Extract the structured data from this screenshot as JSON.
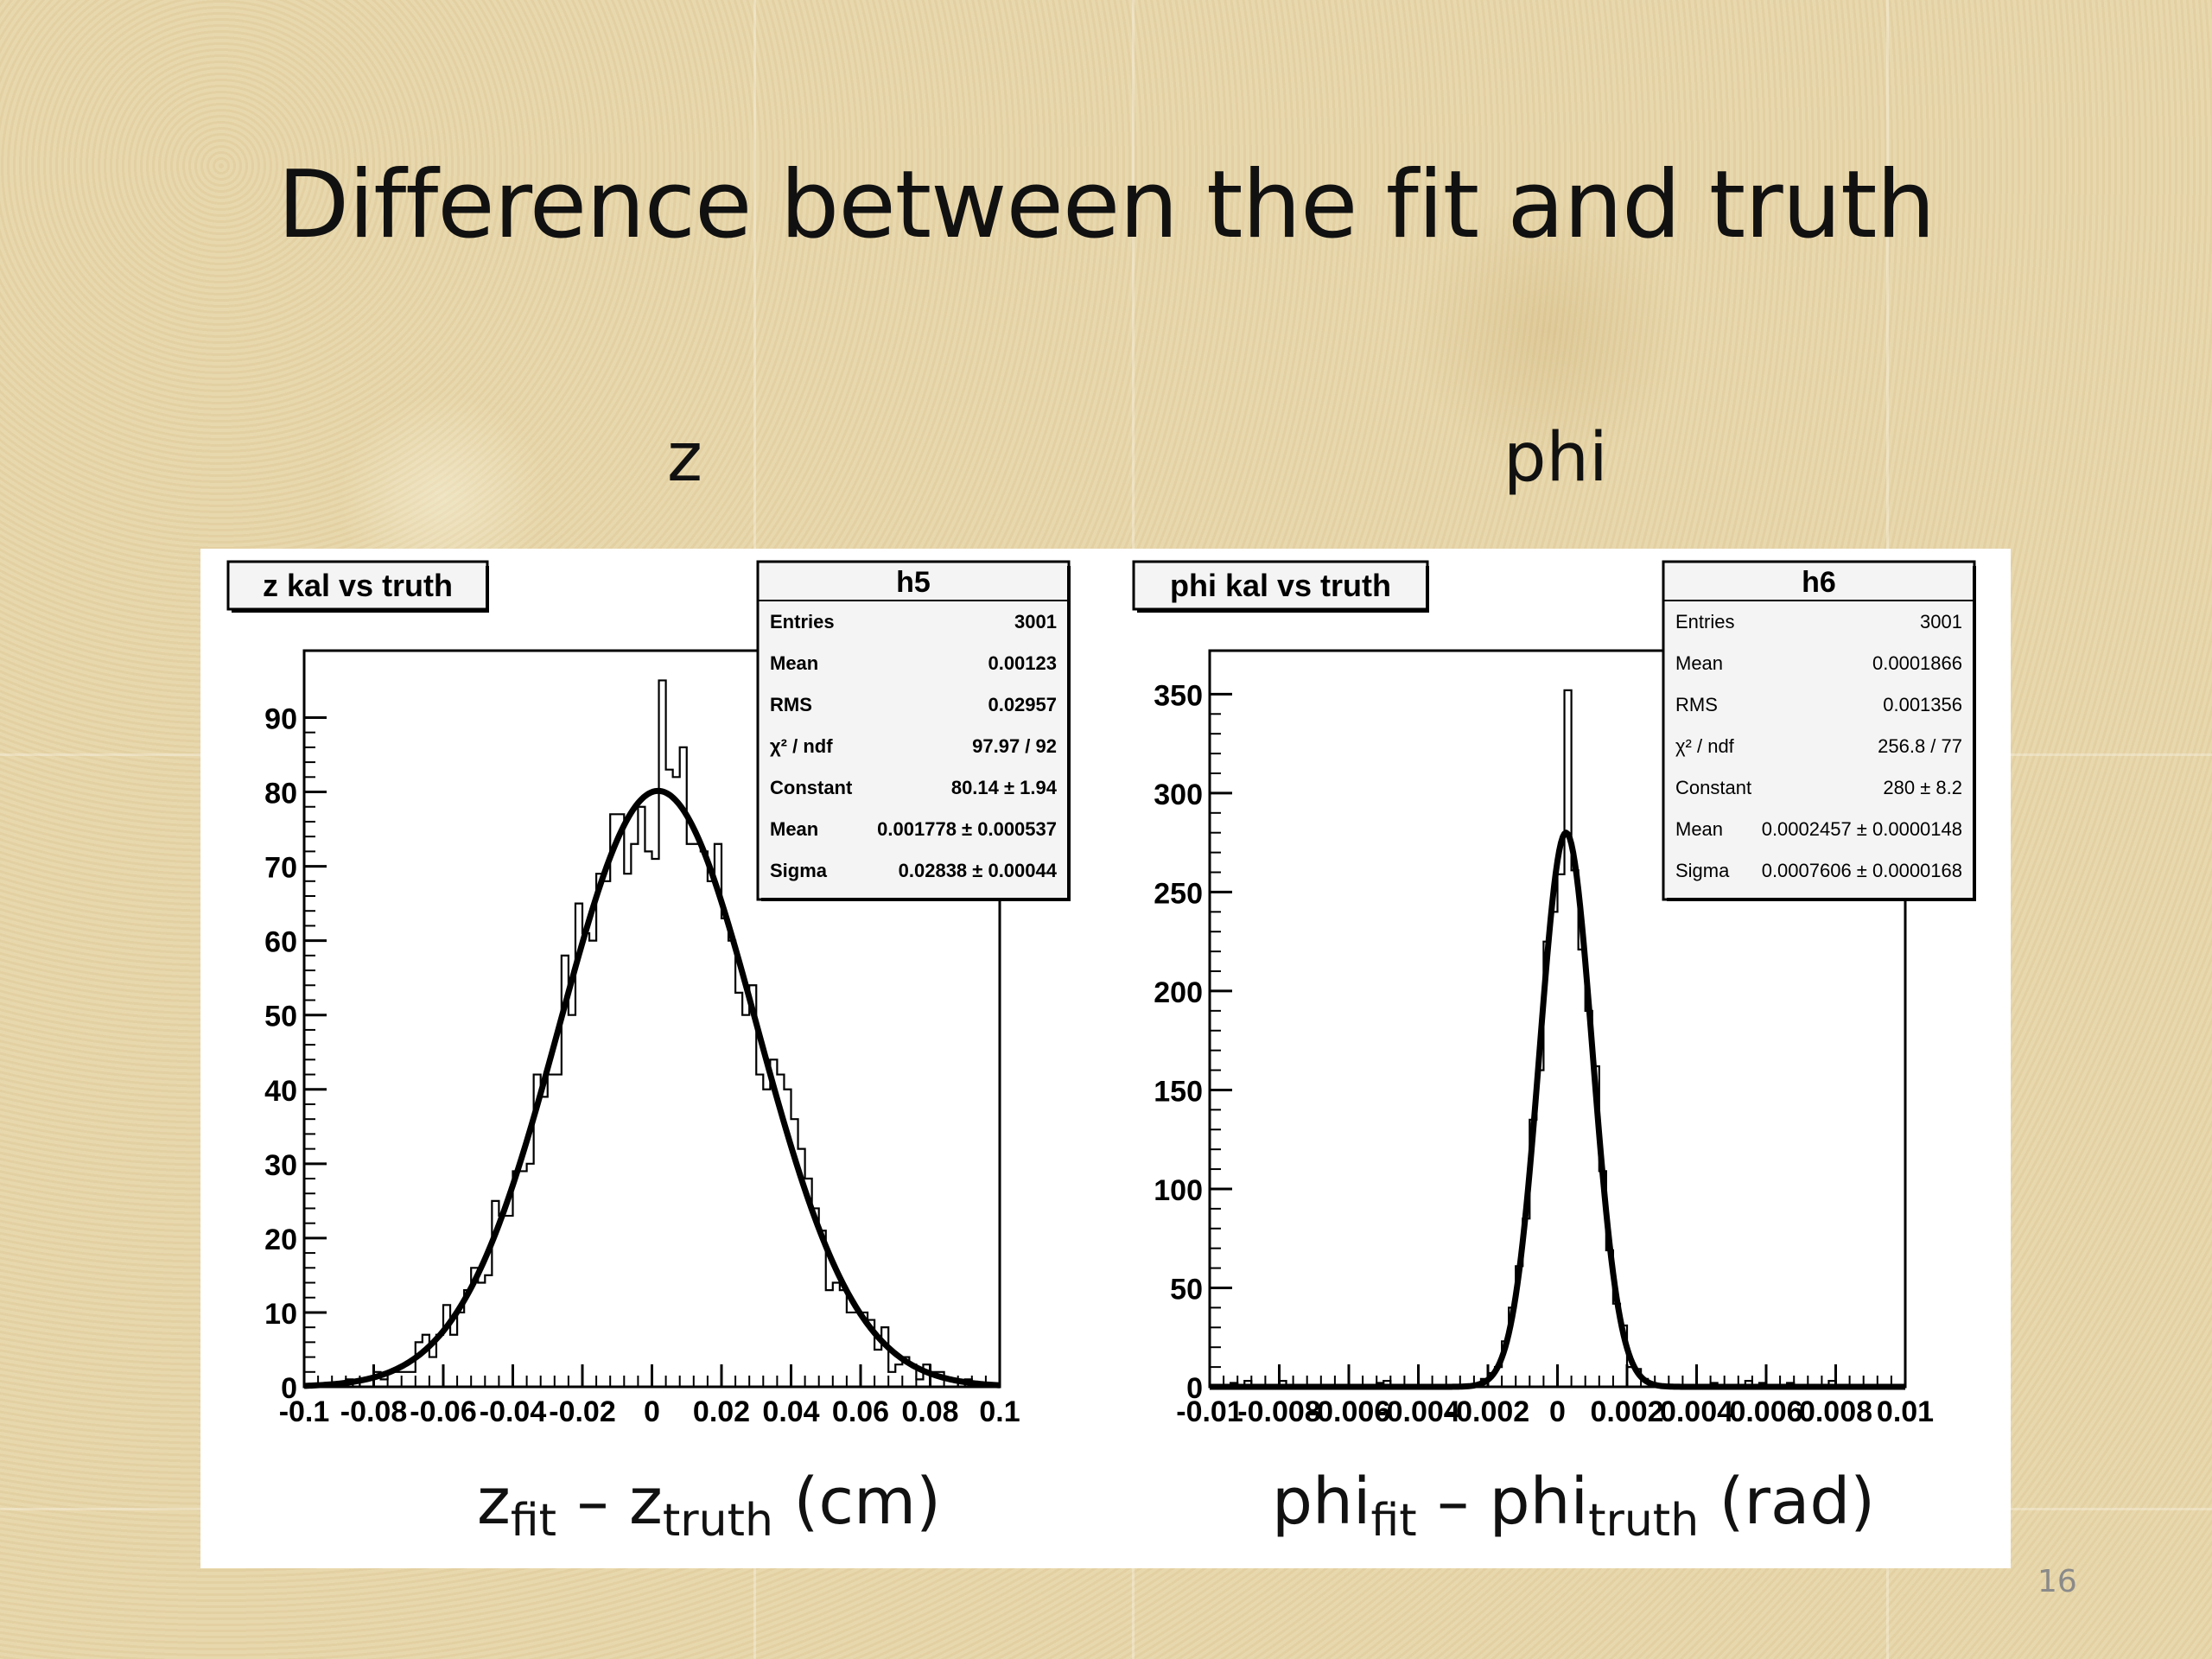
{
  "slide": {
    "title": "Difference between the fit and truth",
    "page_number": "16"
  },
  "chart_data": [
    {
      "type": "bar",
      "panel_label": "z",
      "title": "z kal vs truth",
      "xlabel": {
        "main": "z",
        "sub1": "fit",
        "mid": " – z",
        "sub2": "truth",
        "unit": " (cm)"
      },
      "xlim": [
        -0.1,
        0.1
      ],
      "ylim": [
        0,
        99
      ],
      "xticks": [
        -0.1,
        -0.08,
        -0.06,
        -0.04,
        -0.02,
        0,
        0.02,
        0.04,
        0.06,
        0.08,
        0.1
      ],
      "xtick_labels": [
        "-0.1",
        "-0.08",
        "-0.06",
        "-0.04",
        "-0.02",
        "0",
        "0.02",
        "0.04",
        "0.06",
        "0.08",
        "0.1"
      ],
      "yticks": [
        0,
        10,
        20,
        30,
        40,
        50,
        60,
        70,
        80,
        90
      ],
      "ytick_labels": [
        "0",
        "10",
        "20",
        "30",
        "40",
        "50",
        "60",
        "70",
        "80",
        "90"
      ],
      "fit": {
        "constant": 80.14,
        "mean": 0.001778,
        "sigma": 0.02838
      },
      "histogram_peak": 95,
      "stats": {
        "name": "h5",
        "rows": [
          {
            "label": "Entries",
            "value": "3001"
          },
          {
            "label": "Mean",
            "value": "0.00123"
          },
          {
            "label": "RMS",
            "value": "0.02957"
          },
          {
            "label": "χ² / ndf",
            "value": "97.97 / 92"
          },
          {
            "label": "Constant",
            "value": "80.14 ± 1.94"
          },
          {
            "label": "Mean",
            "value": "0.001778 ± 0.000537"
          },
          {
            "label": "Sigma",
            "value": "0.02838 ± 0.00044"
          }
        ]
      }
    },
    {
      "type": "bar",
      "panel_label": "phi",
      "title": "phi kal vs truth",
      "xlabel": {
        "main": "phi",
        "sub1": "fit",
        "mid": " – phi",
        "sub2": "truth",
        "unit": " (rad)"
      },
      "xlim": [
        -0.01,
        0.01
      ],
      "ylim": [
        0,
        372
      ],
      "xticks": [
        -0.01,
        -0.008,
        -0.006,
        -0.004,
        -0.002,
        0,
        0.002,
        0.004,
        0.006,
        0.008,
        0.01
      ],
      "xtick_labels": [
        "-0.01",
        "-0.008",
        "-0.006",
        "-0.004",
        "-0.002",
        "0",
        "0.002",
        "0.004",
        "0.006",
        "0.008",
        "0.01"
      ],
      "yticks": [
        0,
        50,
        100,
        150,
        200,
        250,
        300,
        350
      ],
      "ytick_labels": [
        "0",
        "50",
        "100",
        "150",
        "200",
        "250",
        "300",
        "350"
      ],
      "fit": {
        "constant": 280,
        "mean": 0.0002457,
        "sigma": 0.0007606
      },
      "histogram_peak": 352,
      "stats": {
        "name": "h6",
        "rows": [
          {
            "label": "Entries",
            "value": "3001"
          },
          {
            "label": "Mean",
            "value": "0.0001866"
          },
          {
            "label": "RMS",
            "value": "0.001356"
          },
          {
            "label": "χ² / ndf",
            "value": "256.8 / 77"
          },
          {
            "label": "Constant",
            "value": "280 ± 8.2"
          },
          {
            "label": "Mean",
            "value": "0.0002457 ± 0.0000148"
          },
          {
            "label": "Sigma",
            "value": "0.0007606 ± 0.0000168"
          }
        ]
      }
    }
  ]
}
